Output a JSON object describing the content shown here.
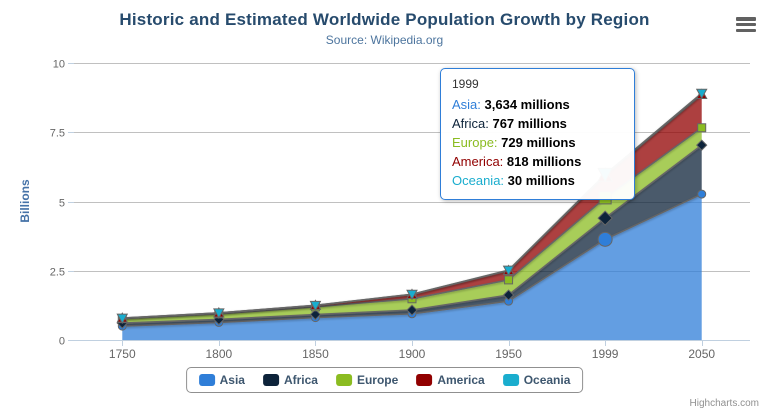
{
  "header": {
    "title": "Historic and Estimated Worldwide Population Growth by Region",
    "subtitle": "Source: Wikipedia.org"
  },
  "colors": {
    "title": "#274b6d",
    "subtitle": "#4d759e",
    "axis_label": "#666666",
    "axis_title": "#4572A7",
    "grid_line": "#C0C0C0",
    "axis_line": "#C0D0E0",
    "series_outline": "#666666",
    "legend_text": "#3E576F",
    "legend_border": "#909090",
    "tooltip_border": "#2f7ed8",
    "credits_text": "#909090"
  },
  "chart_data": {
    "type": "area",
    "stacked": true,
    "title": "Historic and Estimated Worldwide Population Growth by Region",
    "subtitle": "Source: Wikipedia.org",
    "categories": [
      "1750",
      "1800",
      "1850",
      "1900",
      "1950",
      "1999",
      "2050"
    ],
    "series": [
      {
        "name": "Asia",
        "color": "#2f7ed8",
        "marker": "circle",
        "values": [
          502,
          635,
          809,
          947,
          1402,
          3634,
          5268
        ]
      },
      {
        "name": "Africa",
        "color": "#0d233a",
        "marker": "diamond",
        "values": [
          106,
          107,
          111,
          133,
          221,
          767,
          1766
        ]
      },
      {
        "name": "Europe",
        "color": "#8bbc21",
        "marker": "square",
        "values": [
          163,
          203,
          276,
          408,
          547,
          729,
          628
        ]
      },
      {
        "name": "America",
        "color": "#910000",
        "marker": "triangle",
        "values": [
          18,
          31,
          54,
          156,
          339,
          818,
          1201
        ]
      },
      {
        "name": "Oceania",
        "color": "#1aadce",
        "marker": "triangle-down",
        "values": [
          2,
          2,
          2,
          6,
          13,
          30,
          46
        ]
      }
    ],
    "values_unit": "millions",
    "xlabel": "",
    "ylabel": "Billions",
    "yticks": [
      0,
      2.5,
      5,
      7.5,
      10
    ],
    "ylim": [
      0,
      10
    ],
    "grid": true,
    "legend_position": "bottom",
    "fill_opacity": 0.75,
    "hover_index": 5,
    "hover_category": "1999"
  },
  "tooltip": {
    "header": "1999",
    "rows": [
      {
        "name": "Asia",
        "color": "#2f7ed8",
        "value": "3,634",
        "unit": "millions"
      },
      {
        "name": "Africa",
        "color": "#0d233a",
        "value": "767",
        "unit": "millions"
      },
      {
        "name": "Europe",
        "color": "#8bbc21",
        "value": "729",
        "unit": "millions"
      },
      {
        "name": "America",
        "color": "#910000",
        "value": "818",
        "unit": "millions"
      },
      {
        "name": "Oceania",
        "color": "#1aadce",
        "value": "30",
        "unit": "millions"
      }
    ]
  },
  "legend": {
    "items": [
      {
        "label": "Asia",
        "color": "#2f7ed8"
      },
      {
        "label": "Africa",
        "color": "#0d233a"
      },
      {
        "label": "Europe",
        "color": "#8bbc21"
      },
      {
        "label": "America",
        "color": "#910000"
      },
      {
        "label": "Oceania",
        "color": "#1aadce"
      }
    ]
  },
  "credits": "Highcharts.com"
}
